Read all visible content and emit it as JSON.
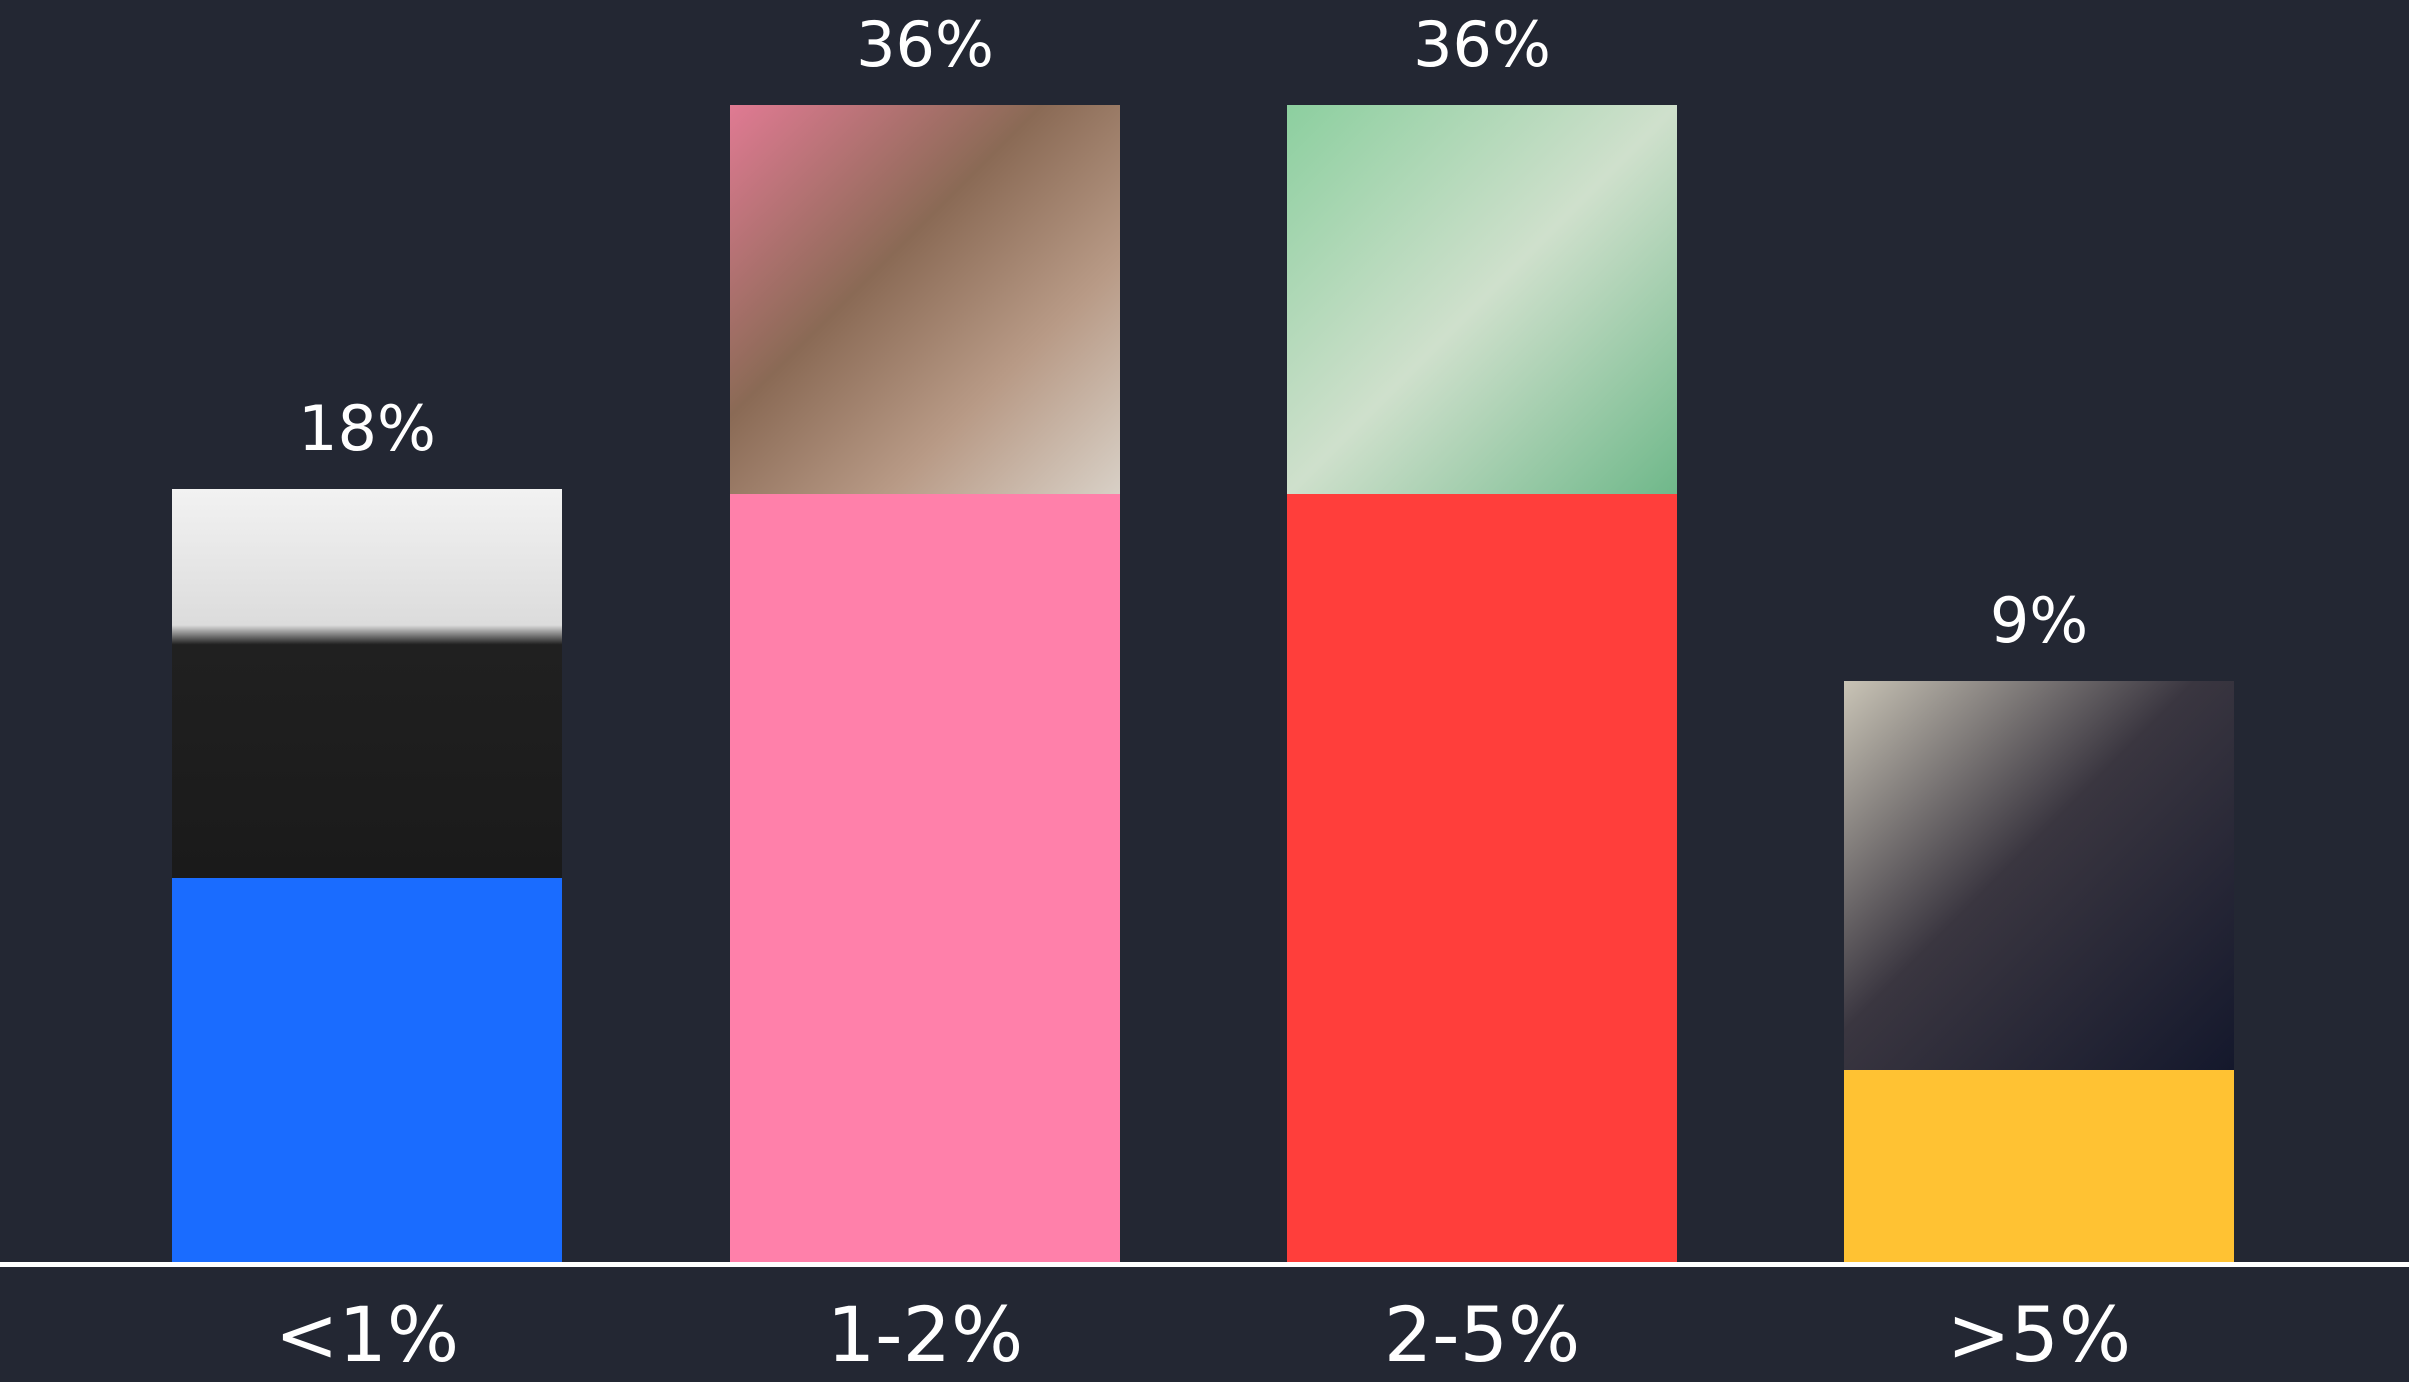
{
  "chart_data": {
    "type": "bar",
    "categories": [
      "<1%",
      "1-2%",
      "2-5%",
      ">5%"
    ],
    "values": [
      18,
      36,
      36,
      9
    ],
    "value_labels": [
      "18%",
      "36%",
      "36%",
      "9%"
    ],
    "colors": [
      "#1a6cff",
      "#ff80aa",
      "#ff3e3b",
      "#ffc233"
    ]
  }
}
